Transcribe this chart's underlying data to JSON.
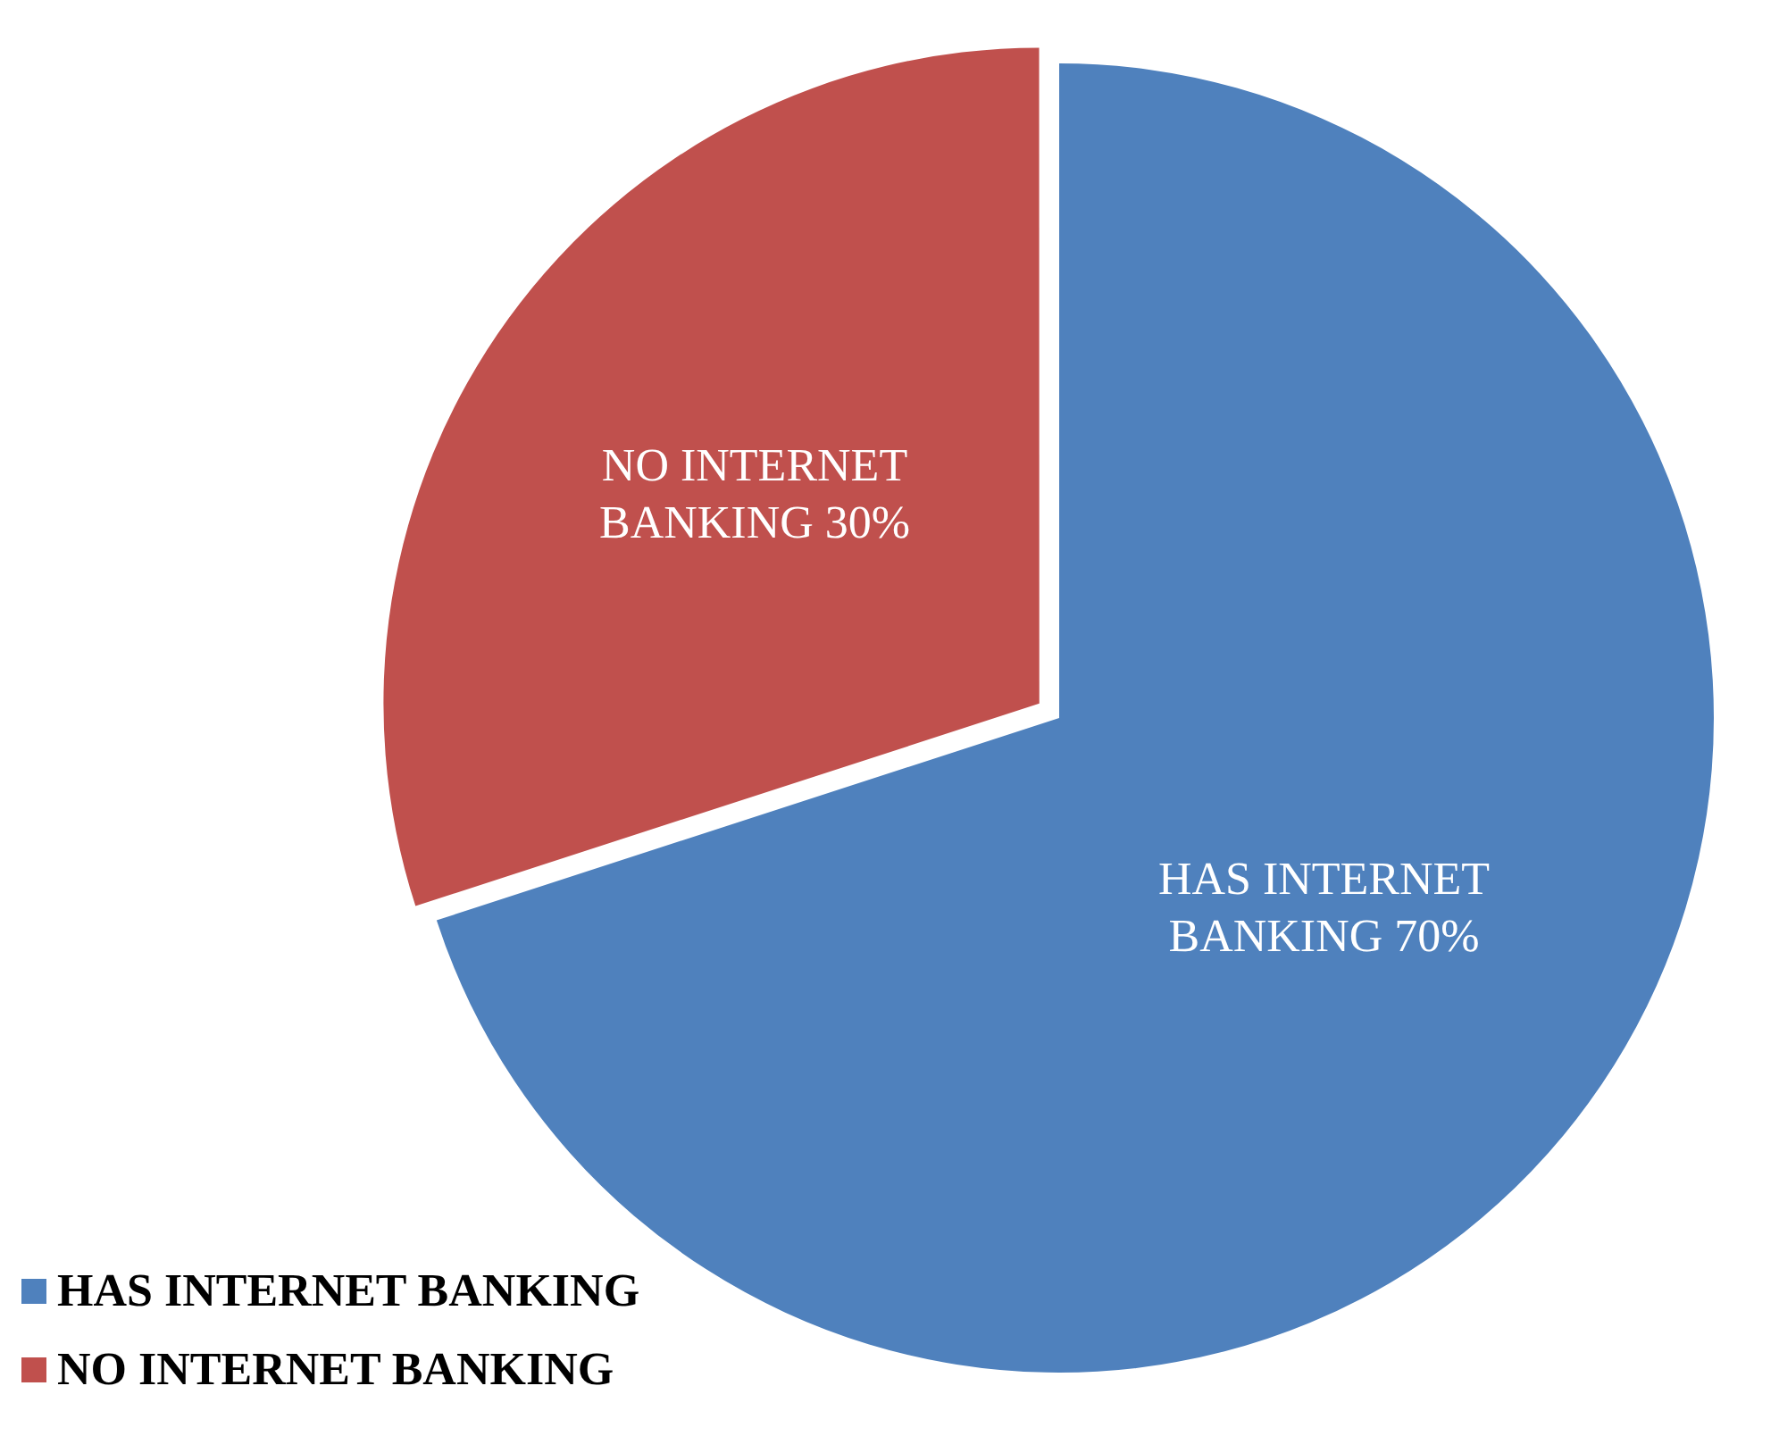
{
  "chart_data": {
    "type": "pie",
    "categories": [
      "HAS INTERNET BANKING",
      "NO INTERNET BANKING"
    ],
    "values": [
      70,
      30
    ],
    "colors": [
      "#4f81bd",
      "#c0504d"
    ],
    "value_labels": [
      "HAS INTERNET BANKING 70%",
      "NO INTERNET BANKING 30%"
    ],
    "legend": "bottom left"
  }
}
